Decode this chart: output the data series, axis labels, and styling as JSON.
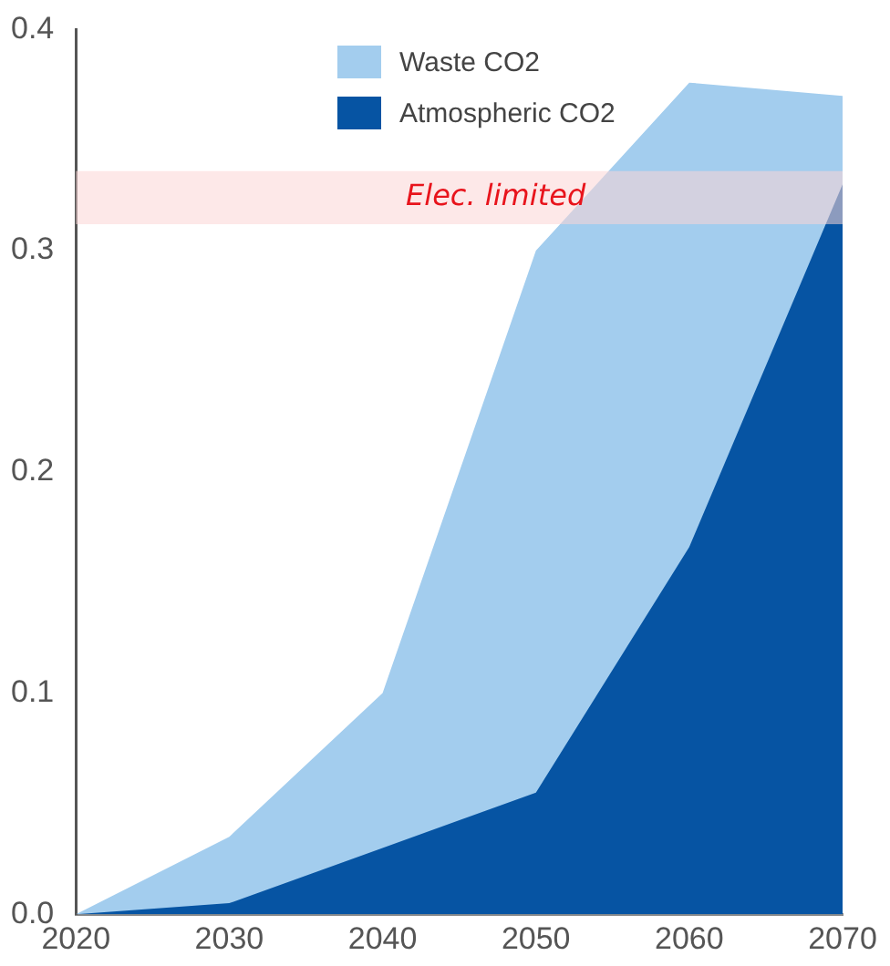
{
  "chart_data": {
    "type": "area",
    "x": [
      2020,
      2030,
      2040,
      2050,
      2060,
      2070
    ],
    "series": [
      {
        "name": "Waste CO2",
        "color": "#a3cdee",
        "values": [
          0,
          0.035,
          0.1,
          0.3,
          0.376,
          0.37
        ]
      },
      {
        "name": "Atmospheric CO2",
        "color": "#0654a3",
        "values": [
          0,
          0.005,
          0.03,
          0.055,
          0.166,
          0.33
        ]
      }
    ],
    "xlim": [
      2020,
      2070
    ],
    "xticks": [
      2020,
      2030,
      2040,
      2050,
      2060,
      2070
    ],
    "ylim": [
      0,
      0.4
    ],
    "yticks": [
      {
        "value": 0,
        "label": "0.0"
      },
      {
        "value": 0.1,
        "label": "0.1"
      },
      {
        "value": 0.2,
        "label": "0.2"
      },
      {
        "value": 0.3,
        "label": "0.3"
      },
      {
        "value": 0.4,
        "label": "0.4"
      }
    ],
    "bands": [
      {
        "axis": "y",
        "from": 0.312,
        "to": 0.336,
        "label": "Elec. limited",
        "color": "#fbd5d5"
      }
    ],
    "grid": false,
    "legend": "top"
  }
}
